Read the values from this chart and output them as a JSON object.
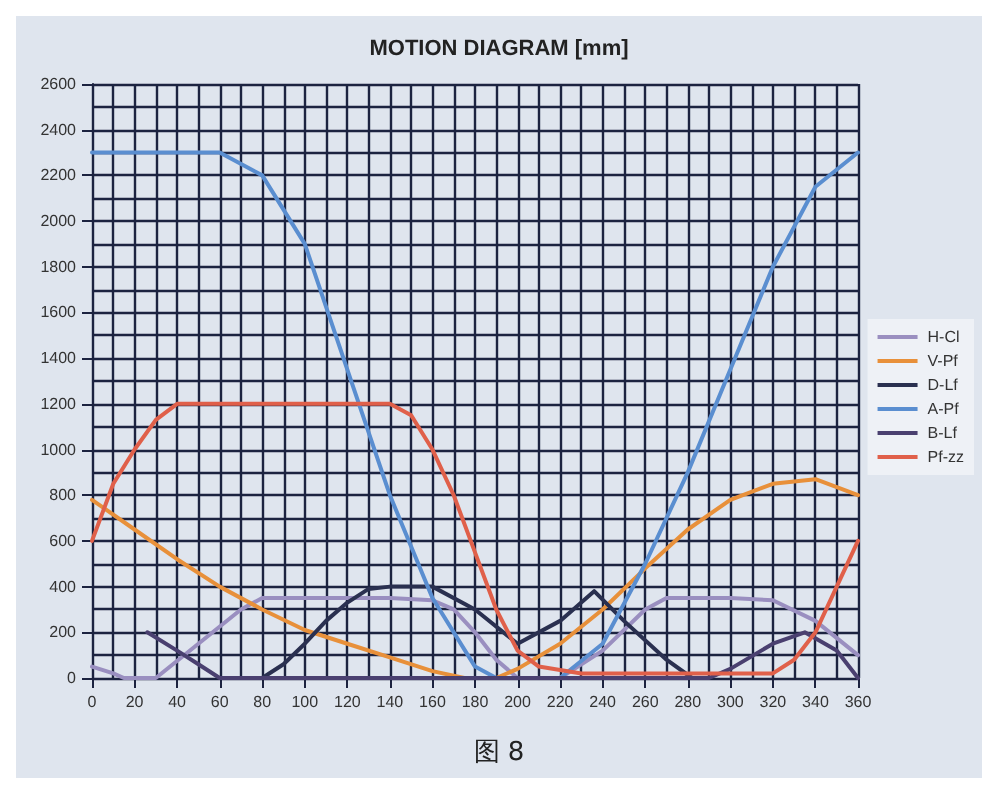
{
  "chart_data": {
    "type": "line",
    "title": "MOTION DIAGRAM [mm]",
    "annotations": [
      "图 8"
    ],
    "xlim": [
      0,
      360
    ],
    "xticks": [
      0,
      20,
      40,
      60,
      80,
      100,
      120,
      140,
      160,
      180,
      200,
      220,
      240,
      260,
      280,
      300,
      320,
      340,
      360
    ],
    "ylim": [
      0,
      2600
    ],
    "yticks": [
      0,
      200,
      400,
      600,
      800,
      1000,
      1200,
      1400,
      1600,
      1800,
      2000,
      2200,
      2400,
      2600
    ],
    "grid": true,
    "legend": "right",
    "marker": "none",
    "line_style": "solid",
    "series": [
      {
        "name": "H-Cl",
        "color": "#9a8fc0",
        "x": [
          0,
          10,
          15,
          30,
          50,
          70,
          80,
          100,
          140,
          160,
          170,
          180,
          190,
          200,
          220,
          240,
          260,
          270,
          300,
          320,
          340,
          360
        ],
        "values": [
          50,
          20,
          0,
          0,
          150,
          300,
          350,
          350,
          350,
          340,
          300,
          200,
          80,
          0,
          0,
          120,
          300,
          350,
          350,
          340,
          250,
          100
        ]
      },
      {
        "name": "V-Pf",
        "color": "#e8903a",
        "x": [
          0,
          20,
          40,
          60,
          80,
          100,
          120,
          140,
          160,
          175,
          190,
          200,
          220,
          240,
          260,
          280,
          300,
          320,
          340,
          360
        ],
        "values": [
          780,
          650,
          520,
          400,
          300,
          210,
          150,
          90,
          30,
          0,
          0,
          40,
          150,
          300,
          480,
          650,
          780,
          850,
          870,
          800
        ]
      },
      {
        "name": "D-Lf",
        "color": "#2a3050",
        "x": [
          80,
          90,
          100,
          110,
          120,
          130,
          140,
          160,
          180,
          200,
          220,
          236,
          250,
          270,
          282
        ],
        "values": [
          0,
          60,
          150,
          250,
          330,
          390,
          400,
          400,
          300,
          150,
          250,
          380,
          250,
          80,
          0
        ]
      },
      {
        "name": "A-Pf",
        "color": "#5a8ed0",
        "x": [
          0,
          60,
          80,
          100,
          120,
          140,
          160,
          180,
          190,
          220,
          240,
          260,
          280,
          300,
          320,
          340,
          360
        ],
        "values": [
          2300,
          2300,
          2200,
          1900,
          1350,
          800,
          350,
          50,
          0,
          0,
          150,
          500,
          900,
          1350,
          1800,
          2150,
          2300
        ]
      },
      {
        "name": "B-Lf",
        "color": "#4a4070",
        "x": [
          26,
          40,
          50,
          60,
          290,
          300,
          320,
          335,
          350,
          360
        ],
        "values": [
          200,
          120,
          60,
          0,
          0,
          40,
          150,
          200,
          120,
          0
        ]
      },
      {
        "name": "Pf-zz",
        "color": "#e0604a",
        "x": [
          0,
          10,
          20,
          30,
          40,
          140,
          150,
          160,
          170,
          180,
          190,
          200,
          210,
          230,
          320,
          330,
          340,
          350,
          360
        ],
        "values": [
          600,
          850,
          1000,
          1130,
          1200,
          1200,
          1150,
          1000,
          800,
          550,
          300,
          120,
          50,
          20,
          20,
          80,
          200,
          400,
          600
        ]
      }
    ]
  }
}
